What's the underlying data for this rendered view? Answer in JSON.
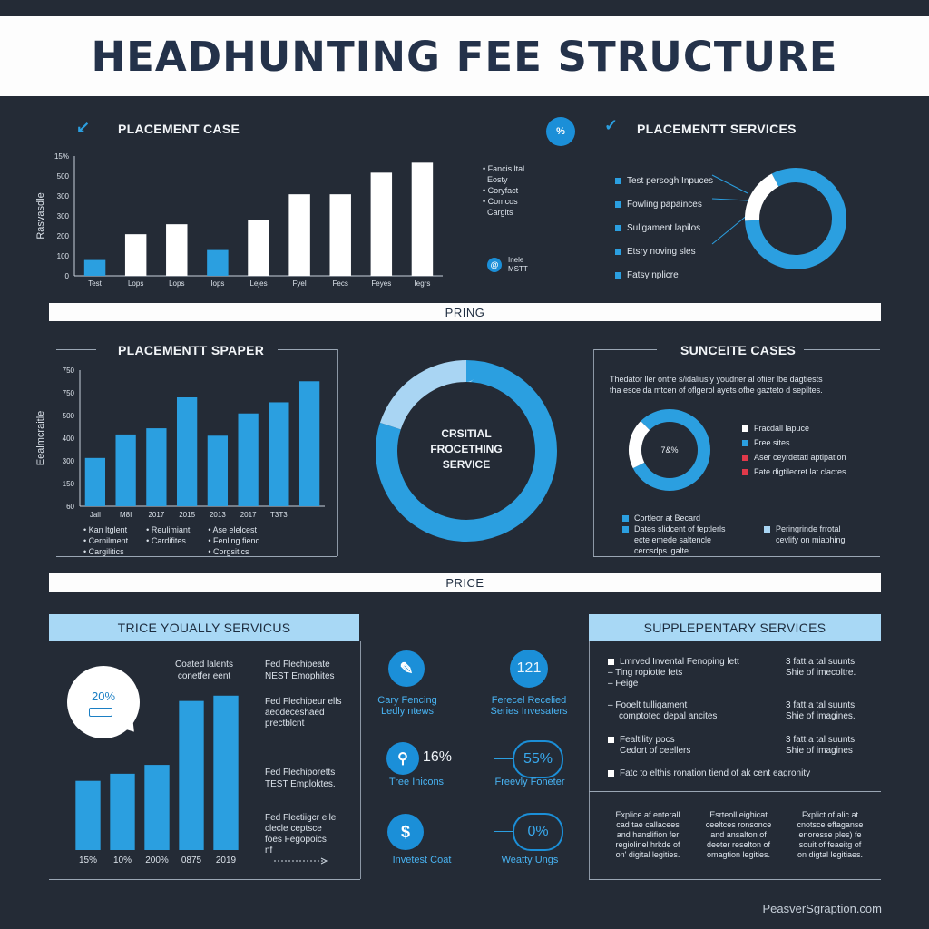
{
  "title": "HEADHUNTING FEE STRUCTURE",
  "colors": {
    "accent": "#2b9fe0",
    "background": "#242b36",
    "white": "#ffffff",
    "light_blue": "#a8d8f5",
    "red": "#e0394a"
  },
  "top_left": {
    "title": "PLACEMENT CASE",
    "icon": "check-icon",
    "legend": [
      "Fancis ltal",
      "Eosty",
      "Coryfact",
      "Comcos",
      "Cargits"
    ],
    "side_badge": "@",
    "side_note": [
      "Inele",
      "MSTT"
    ]
  },
  "top_right": {
    "title": "PLACEMENTT SERVICES",
    "badge": "%",
    "items": [
      "Test persogh Inpuces",
      "Fowling papainces",
      "Sullgament lapilos",
      "Etsry noving sles",
      "Fatsy nplicre"
    ]
  },
  "divider1": "PRING",
  "mid_left": {
    "title": "PLACEMENTT SPAPER",
    "legend_cols": [
      [
        "Kan ltglent",
        "Cernilment",
        "Cargilitics"
      ],
      [
        "Reulimiant",
        "Cardifites"
      ],
      [
        "Ase elelcest",
        "Fenling fiend",
        "Corgsitics"
      ]
    ]
  },
  "mid_center": {
    "ring_label": [
      "CRSITIAL",
      "FROCETHING",
      "SERVICE"
    ]
  },
  "mid_right": {
    "title": "SUNCEITE CASES",
    "desc": [
      "Thedator ller ontre s/idaliusly youdner al ofiier lbe dagtiests",
      "tha esce da mtcen of oflgerol ayets ofbe gazteto d sepiltes."
    ],
    "donut_label": "7&%",
    "legend": [
      "Fracdall lapuce",
      "Free sites",
      "Aser ceyrdetatl aptipation",
      "Fate digtilecret lat clactes"
    ],
    "bottom_left": [
      "Cortleor at Becard",
      "Dates slidcent of feptlerls",
      "ecte emede saltencle",
      "cercsdps igalte"
    ],
    "bottom_right": [
      "Peringrinde frrotal",
      "cevlify on miaphing"
    ]
  },
  "divider2": "PRICE",
  "bottom_left": {
    "title": "TRICE YOUALLY SERVICUS",
    "bubble_value": "20%",
    "notes": [
      "Coated lalents",
      "conetfer eent"
    ],
    "notes2": [
      "Fed Flechipeate",
      "NEST Emophites"
    ],
    "notes3": [
      "Fed Flechipeur ells",
      "aeodeceshaed",
      "prectblcnt"
    ],
    "notes4": [
      "Fed Flechiporetts",
      "TEST Emploktes."
    ],
    "notes5": [
      "Fed Flectiigcr elle",
      "clecle ceptsce",
      "foes Fegopoics",
      "nf"
    ]
  },
  "mid_icons": [
    {
      "icon": "pencil-icon",
      "value": "",
      "label": [
        "Cary Fencing",
        "Ledly ntews"
      ]
    },
    {
      "icon": "number-badge",
      "value": "121",
      "label": [
        "Ferecel Recelied",
        "Series Invesaters"
      ]
    },
    {
      "icon": "location-pin-icon",
      "value": "16%",
      "label": [
        "Tree Inicons"
      ]
    },
    {
      "icon": "percent-badge",
      "value": "55%",
      "label": [
        "Freevly Foneter"
      ]
    },
    {
      "icon": "dollar-icon",
      "value": "",
      "label": [
        "Invetest Coat"
      ]
    },
    {
      "icon": "percent-badge",
      "value": "0%",
      "label": [
        "Weatty Ungs"
      ]
    }
  ],
  "bottom_right": {
    "title": "SUPPLEPENTARY SERVICES",
    "rows": [
      {
        "left": [
          "Lmrved Invental Fenoping lett",
          "Ting ropiotte fets",
          "Feige"
        ],
        "right": [
          "3 fatt a tal suunts",
          "Shie of imecoltre."
        ]
      },
      {
        "left": [
          "Fooelt tulligament",
          "comptoted depal ancites"
        ],
        "right": [
          "3 fatt a tal suunts",
          "Shie of imagines."
        ]
      },
      {
        "left": [
          "Fealtility pocs",
          "Cedort of ceellers"
        ],
        "right": [
          "3 fatt a tal suunts",
          "Shie of imagines"
        ]
      },
      {
        "left": [
          "Fatc to elthis ronation tiend of ak cent eagronity"
        ],
        "right": []
      }
    ],
    "cols": [
      [
        "Explice af enterall",
        "cad tae callacees",
        "and hanslifion fer",
        "regiolinel hrkde of",
        "on' digital legities."
      ],
      [
        "Esrteoll eighicat",
        "ceeltces ronsonce",
        "and ansalton of",
        "deeter reselton of",
        "omagtion legities."
      ],
      [
        "Fxplict of alic at",
        "cnotsce effaganse",
        "enoresse ples) fe",
        "souit of feaeitg of",
        "on digtal legitiaes."
      ]
    ]
  },
  "footer": "PeasverSgraption.com",
  "chart_data": [
    {
      "type": "bar",
      "title": "PLACEMENT CASE",
      "ylabel": "Rasvasdle",
      "categories": [
        "Test",
        "Lops",
        "Lops",
        "Iops",
        "Lejes",
        "Fyel",
        "Fecs",
        "Feyes",
        "Iegrs"
      ],
      "values": [
        95,
        250,
        310,
        155,
        335,
        490,
        490,
        620,
        680
      ],
      "colors": [
        "blue",
        "white",
        "white",
        "blue",
        "white",
        "white",
        "white",
        "white",
        "white"
      ],
      "y_ticks": [
        "0",
        "100",
        "200",
        "300",
        "300",
        "500",
        "15%"
      ],
      "ylim": [
        0,
        720
      ]
    },
    {
      "type": "donut",
      "title": "PLACEMENTT SERVICES",
      "values": [
        82,
        18
      ],
      "colors": [
        "#2b9fe0",
        "#ffffff"
      ]
    },
    {
      "type": "bar",
      "title": "PLACEMENTT SPAPER",
      "ylabel": "Eealmcraitle",
      "categories": [
        "Jall",
        "M8I",
        "2017",
        "2015",
        "2013",
        "2017",
        "T3T3",
        ""
      ],
      "values": [
        390,
        580,
        630,
        880,
        570,
        750,
        840,
        1010
      ],
      "y_ticks": [
        "60",
        "150",
        "300",
        "400",
        "500",
        "750",
        "750"
      ],
      "ylim": [
        0,
        1100
      ]
    },
    {
      "type": "donut",
      "title": "CRSITIAL FROCETHING SERVICE",
      "values": [
        80,
        20
      ],
      "colors": [
        "#2b9fe0",
        "#a9d5f3"
      ]
    },
    {
      "type": "donut",
      "title": "SUNCEITE CASES",
      "values": [
        80,
        20
      ],
      "colors": [
        "#2b9fe0",
        "#ffffff"
      ]
    },
    {
      "type": "bar",
      "title": "TRICE YOUALLY SERVICUS",
      "categories": [
        "15%",
        "10%",
        "200%",
        "0875",
        "2019"
      ],
      "values": [
        195,
        215,
        240,
        420,
        435
      ],
      "ylim": [
        0,
        460
      ]
    }
  ]
}
